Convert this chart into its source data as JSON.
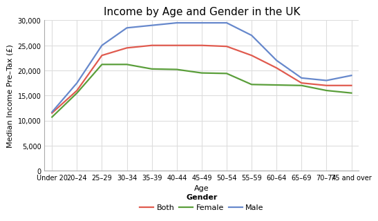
{
  "title": "Income by Age and Gender in the UK",
  "xlabel": "Age",
  "ylabel": "Median Income Pre–Tax (£)",
  "categories": [
    "Under 20",
    "20–24",
    "25–29",
    "30–34",
    "35–39",
    "40–44",
    "45–49",
    "50–54",
    "55–59",
    "60–64",
    "65–69",
    "70–74",
    "75 and over"
  ],
  "both": [
    11500,
    16000,
    23000,
    24500,
    25000,
    25000,
    25000,
    24800,
    23000,
    20500,
    17500,
    17000,
    17000
  ],
  "female": [
    10700,
    15500,
    21200,
    21200,
    20300,
    20200,
    19500,
    19400,
    17200,
    17100,
    17000,
    16000,
    15500
  ],
  "male": [
    11700,
    17500,
    25000,
    28500,
    29000,
    29500,
    29500,
    29500,
    27000,
    22000,
    18500,
    18000,
    19000
  ],
  "both_color": "#e05a4e",
  "female_color": "#5a9e3a",
  "male_color": "#6688cc",
  "ylim": [
    0,
    30000
  ],
  "yticks": [
    0,
    5000,
    10000,
    15000,
    20000,
    25000,
    30000
  ],
  "background_color": "#ffffff",
  "legend_labels": [
    "Both",
    "Female",
    "Male"
  ],
  "linewidth": 1.6,
  "title_fontsize": 11,
  "axis_label_fontsize": 8,
  "tick_fontsize": 7,
  "legend_fontsize": 8
}
